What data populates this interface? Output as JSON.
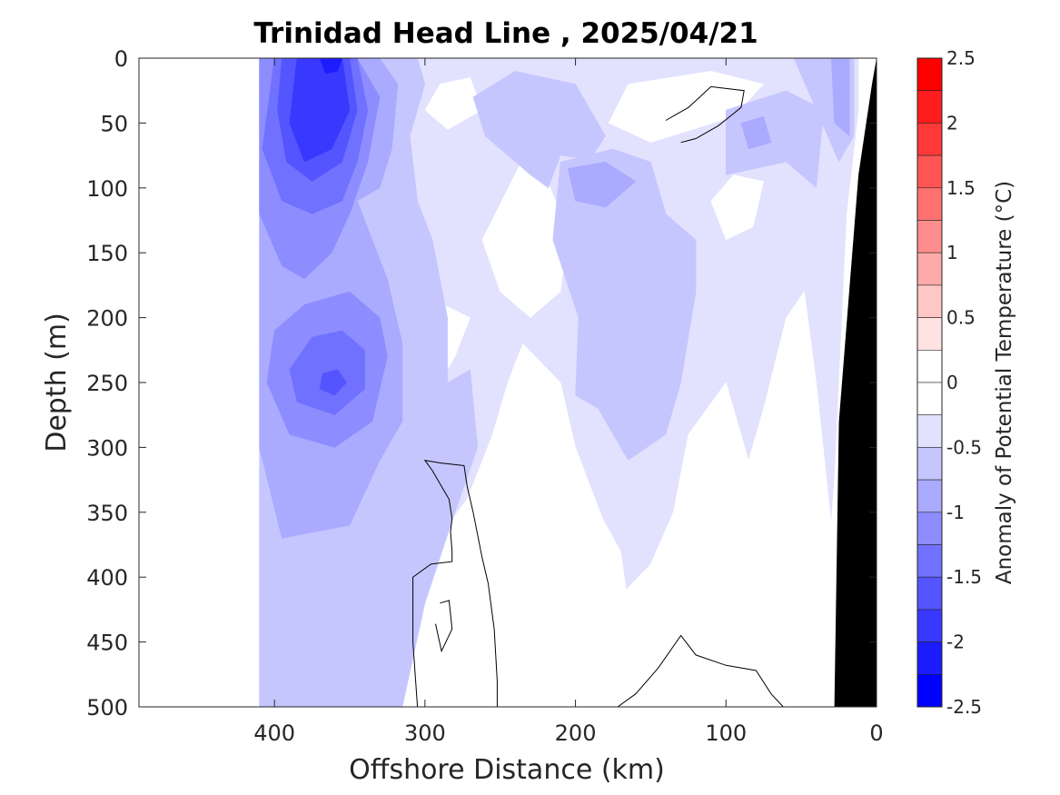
{
  "chart_data": {
    "type": "heatmap",
    "title": "Trinidad Head Line , 2025/04/21",
    "xlabel": "Offshore Distance (km)",
    "ylabel": "Depth (m)",
    "colorbar_label": "Anomaly of Potential Temperature (°C)",
    "xlim": [
      490,
      0
    ],
    "ylim": [
      0,
      500
    ],
    "x_reversed": true,
    "y_reversed": true,
    "xticks": [
      400,
      300,
      200,
      100,
      0
    ],
    "yticks": [
      0,
      50,
      100,
      150,
      200,
      250,
      300,
      350,
      400,
      450,
      500
    ],
    "colorbar_ticks": [
      2.5,
      2,
      1.5,
      1,
      0.5,
      0,
      -0.5,
      -1,
      -1.5,
      -2,
      -2.5
    ],
    "colorbar_tick_labels": [
      "2.5",
      "2",
      "1.5",
      "1",
      "0.5",
      "0",
      "-0.5",
      "-1",
      "-1.5",
      "-2",
      "-2.5"
    ],
    "colorbar_levels": [
      {
        "from": 2.25,
        "to": 2.5,
        "color": "#ff0000"
      },
      {
        "from": 2.0,
        "to": 2.25,
        "color": "#ff1c1c"
      },
      {
        "from": 1.75,
        "to": 2.0,
        "color": "#ff3838"
      },
      {
        "from": 1.5,
        "to": 1.75,
        "color": "#ff5555"
      },
      {
        "from": 1.25,
        "to": 1.5,
        "color": "#ff7171"
      },
      {
        "from": 1.0,
        "to": 1.25,
        "color": "#ff8d8d"
      },
      {
        "from": 0.75,
        "to": 1.0,
        "color": "#ffaaaa"
      },
      {
        "from": 0.5,
        "to": 0.75,
        "color": "#ffc6c6"
      },
      {
        "from": 0.25,
        "to": 0.5,
        "color": "#ffe2e2"
      },
      {
        "from": 0.0,
        "to": 0.25,
        "color": "#ffffff"
      },
      {
        "from": -0.25,
        "to": 0.0,
        "color": "#ffffff"
      },
      {
        "from": -0.5,
        "to": -0.25,
        "color": "#e2e2ff"
      },
      {
        "from": -0.75,
        "to": -0.5,
        "color": "#c6c6ff"
      },
      {
        "from": -1.0,
        "to": -0.75,
        "color": "#aaaaff"
      },
      {
        "from": -1.25,
        "to": -1.0,
        "color": "#8d8dff"
      },
      {
        "from": -1.5,
        "to": -1.25,
        "color": "#7171ff"
      },
      {
        "from": -1.75,
        "to": -1.5,
        "color": "#5555ff"
      },
      {
        "from": -2.0,
        "to": -1.75,
        "color": "#3838ff"
      },
      {
        "from": -2.25,
        "to": -2.0,
        "color": "#1c1cff"
      },
      {
        "from": -2.5,
        "to": -2.25,
        "color": "#0000ff"
      }
    ],
    "data_extent_km": 410,
    "anomaly_regions": [
      {
        "level": -0.25,
        "color": "#e2e2ff",
        "points": [
          [
            410,
            0
          ],
          [
            12,
            0
          ],
          [
            12,
            40
          ],
          [
            20,
            120
          ],
          [
            28,
            320
          ],
          [
            38,
            480
          ],
          [
            60,
            500
          ],
          [
            410,
            500
          ]
        ]
      },
      {
        "level": 0.0,
        "color": "#ffffff",
        "points": [
          [
            290,
            20
          ],
          [
            270,
            15
          ],
          [
            262,
            40
          ],
          [
            285,
            55
          ],
          [
            300,
            40
          ]
        ]
      },
      {
        "level": 0.0,
        "color": "#ffffff",
        "points": [
          [
            210,
            60
          ],
          [
            198,
            55
          ],
          [
            180,
            62
          ],
          [
            205,
            68
          ]
        ]
      },
      {
        "level": 0.0,
        "color": "#ffffff",
        "points": [
          [
            165,
            20
          ],
          [
            110,
            10
          ],
          [
            75,
            20
          ],
          [
            95,
            45
          ],
          [
            150,
            65
          ],
          [
            178,
            50
          ]
        ]
      },
      {
        "level": 0.0,
        "color": "#ffffff",
        "points": [
          [
            236,
            80
          ],
          [
            262,
            140
          ],
          [
            250,
            180
          ],
          [
            230,
            200
          ],
          [
            210,
            180
          ],
          [
            205,
            135
          ],
          [
            220,
            90
          ]
        ]
      },
      {
        "level": 0.0,
        "color": "#ffffff",
        "points": [
          [
            290,
            250
          ],
          [
            280,
            230
          ],
          [
            270,
            200
          ],
          [
            288,
            190
          ],
          [
            300,
            230
          ]
        ]
      },
      {
        "level": 0.0,
        "color": "#ffffff",
        "points": [
          [
            318,
            500
          ],
          [
            312,
            430
          ],
          [
            298,
            380
          ],
          [
            272,
            340
          ],
          [
            255,
            290
          ],
          [
            245,
            250
          ],
          [
            235,
            220
          ],
          [
            210,
            250
          ],
          [
            200,
            300
          ],
          [
            182,
            355
          ],
          [
            170,
            380
          ],
          [
            155,
            500
          ]
        ]
      },
      {
        "level": 0.0,
        "color": "#ffffff",
        "points": [
          [
            185,
            500
          ],
          [
            160,
            460
          ],
          [
            170,
            440
          ],
          [
            175,
            420
          ],
          [
            150,
            390
          ],
          [
            135,
            350
          ],
          [
            125,
            290
          ],
          [
            100,
            250
          ],
          [
            85,
            310
          ],
          [
            75,
            270
          ],
          [
            60,
            200
          ],
          [
            48,
            180
          ],
          [
            40,
            250
          ],
          [
            30,
            360
          ],
          [
            28,
            500
          ]
        ]
      },
      {
        "level": 0.0,
        "color": "#ffffff",
        "points": [
          [
            100,
            140
          ],
          [
            82,
            130
          ],
          [
            75,
            95
          ],
          [
            95,
            90
          ],
          [
            110,
            110
          ]
        ]
      },
      {
        "level": -0.5,
        "color": "#c6c6ff",
        "points": [
          [
            410,
            0
          ],
          [
            305,
            0
          ],
          [
            300,
            20
          ],
          [
            310,
            60
          ],
          [
            305,
            110
          ],
          [
            295,
            140
          ],
          [
            285,
            200
          ],
          [
            285,
            250
          ],
          [
            270,
            240
          ],
          [
            265,
            300
          ],
          [
            280,
            350
          ],
          [
            300,
            420
          ],
          [
            315,
            500
          ],
          [
            410,
            500
          ]
        ]
      },
      {
        "level": -0.5,
        "color": "#c6c6ff",
        "points": [
          [
            260,
            60
          ],
          [
            245,
            75
          ],
          [
            230,
            90
          ],
          [
            218,
            100
          ],
          [
            210,
            75
          ],
          [
            190,
            78
          ],
          [
            180,
            60
          ],
          [
            200,
            20
          ],
          [
            240,
            10
          ],
          [
            268,
            30
          ]
        ]
      },
      {
        "level": -0.5,
        "color": "#c6c6ff",
        "points": [
          [
            210,
            80
          ],
          [
            175,
            70
          ],
          [
            150,
            80
          ],
          [
            140,
            120
          ],
          [
            120,
            140
          ],
          [
            120,
            180
          ],
          [
            130,
            250
          ],
          [
            140,
            290
          ],
          [
            165,
            310
          ],
          [
            185,
            270
          ],
          [
            200,
            260
          ],
          [
            198,
            200
          ],
          [
            215,
            140
          ]
        ]
      },
      {
        "level": -0.5,
        "color": "#c6c6ff",
        "points": [
          [
            100,
            40
          ],
          [
            60,
            25
          ],
          [
            35,
            40
          ],
          [
            40,
            100
          ],
          [
            60,
            80
          ],
          [
            100,
            90
          ]
        ]
      },
      {
        "level": -0.5,
        "color": "#c6c6ff",
        "points": [
          [
            55,
            0
          ],
          [
            15,
            0
          ],
          [
            15,
            60
          ],
          [
            25,
            80
          ],
          [
            40,
            40
          ]
        ]
      },
      {
        "level": -0.75,
        "color": "#aaaaff",
        "points": [
          [
            410,
            0
          ],
          [
            330,
            0
          ],
          [
            318,
            20
          ],
          [
            322,
            70
          ],
          [
            330,
            100
          ],
          [
            345,
            110
          ],
          [
            325,
            170
          ],
          [
            315,
            220
          ],
          [
            315,
            280
          ],
          [
            330,
            310
          ],
          [
            350,
            360
          ],
          [
            395,
            370
          ],
          [
            410,
            300
          ]
        ]
      },
      {
        "level": -0.75,
        "color": "#aaaaff",
        "points": [
          [
            205,
            85
          ],
          [
            180,
            80
          ],
          [
            160,
            95
          ],
          [
            180,
            115
          ],
          [
            200,
            110
          ]
        ]
      },
      {
        "level": -0.75,
        "color": "#aaaaff",
        "points": [
          [
            30,
            0
          ],
          [
            18,
            0
          ],
          [
            18,
            60
          ],
          [
            28,
            50
          ]
        ]
      },
      {
        "level": -0.75,
        "color": "#aaaaff",
        "points": [
          [
            90,
            50
          ],
          [
            75,
            45
          ],
          [
            70,
            65
          ],
          [
            85,
            70
          ]
        ]
      },
      {
        "level": -1.0,
        "color": "#8d8dff",
        "points": [
          [
            410,
            0
          ],
          [
            345,
            0
          ],
          [
            330,
            30
          ],
          [
            338,
            80
          ],
          [
            350,
            120
          ],
          [
            362,
            150
          ],
          [
            380,
            170
          ],
          [
            395,
            160
          ],
          [
            410,
            120
          ]
        ]
      },
      {
        "level": -1.0,
        "color": "#8d8dff",
        "points": [
          [
            350,
            180
          ],
          [
            330,
            200
          ],
          [
            325,
            230
          ],
          [
            335,
            280
          ],
          [
            360,
            300
          ],
          [
            390,
            290
          ],
          [
            405,
            250
          ],
          [
            400,
            210
          ],
          [
            380,
            190
          ]
        ]
      },
      {
        "level": -1.25,
        "color": "#7171ff",
        "points": [
          [
            400,
            0
          ],
          [
            345,
            0
          ],
          [
            338,
            40
          ],
          [
            345,
            80
          ],
          [
            355,
            110
          ],
          [
            375,
            120
          ],
          [
            395,
            110
          ],
          [
            408,
            70
          ]
        ]
      },
      {
        "level": -1.25,
        "color": "#7171ff",
        "points": [
          [
            355,
            210
          ],
          [
            340,
            225
          ],
          [
            340,
            255
          ],
          [
            360,
            275
          ],
          [
            385,
            265
          ],
          [
            390,
            240
          ],
          [
            375,
            215
          ]
        ]
      },
      {
        "level": -1.5,
        "color": "#5555ff",
        "points": [
          [
            395,
            0
          ],
          [
            350,
            0
          ],
          [
            345,
            40
          ],
          [
            355,
            80
          ],
          [
            375,
            95
          ],
          [
            392,
            80
          ],
          [
            398,
            40
          ]
        ]
      },
      {
        "level": -1.5,
        "color": "#5555ff",
        "points": [
          [
            358,
            240
          ],
          [
            352,
            250
          ],
          [
            360,
            260
          ],
          [
            370,
            255
          ],
          [
            368,
            243
          ]
        ]
      },
      {
        "level": -1.75,
        "color": "#3838ff",
        "points": [
          [
            385,
            0
          ],
          [
            355,
            0
          ],
          [
            350,
            40
          ],
          [
            362,
            70
          ],
          [
            380,
            80
          ],
          [
            390,
            50
          ]
        ]
      },
      {
        "level": -2.0,
        "color": "#1c1cff",
        "points": [
          [
            370,
            0
          ],
          [
            355,
            0
          ],
          [
            358,
            10
          ],
          [
            366,
            12
          ]
        ]
      }
    ],
    "zero_contours": [
      [
        [
          305,
          500
        ],
        [
          308,
          450
        ],
        [
          308,
          400
        ],
        [
          296,
          390
        ],
        [
          282,
          388
        ],
        [
          282,
          380
        ],
        [
          283,
          365
        ],
        [
          282,
          355
        ],
        [
          284,
          340
        ],
        [
          290,
          328
        ],
        [
          295,
          318
        ],
        [
          300,
          310
        ],
        [
          290,
          312
        ],
        [
          274,
          314
        ],
        [
          272,
          330
        ],
        [
          268,
          350
        ],
        [
          262,
          385
        ],
        [
          258,
          405
        ],
        [
          254,
          440
        ],
        [
          252,
          480
        ],
        [
          252,
          500
        ]
      ],
      [
        [
          290,
          420
        ],
        [
          284,
          418
        ],
        [
          282,
          440
        ],
        [
          289,
          457
        ],
        [
          293,
          436
        ]
      ],
      [
        [
          172,
          500
        ],
        [
          160,
          490
        ],
        [
          145,
          470
        ],
        [
          130,
          445
        ],
        [
          120,
          460
        ],
        [
          100,
          468
        ],
        [
          80,
          472
        ],
        [
          70,
          490
        ],
        [
          62,
          500
        ]
      ],
      [
        [
          130,
          65
        ],
        [
          120,
          62
        ],
        [
          105,
          52
        ],
        [
          90,
          38
        ],
        [
          88,
          25
        ],
        [
          110,
          22
        ],
        [
          125,
          38
        ],
        [
          140,
          48
        ]
      ]
    ],
    "bathymetry": {
      "color": "#000000",
      "points": [
        [
          0,
          0
        ],
        [
          3,
          20
        ],
        [
          12,
          90
        ],
        [
          25,
          280
        ],
        [
          28,
          500
        ],
        [
          0,
          500
        ]
      ]
    }
  }
}
